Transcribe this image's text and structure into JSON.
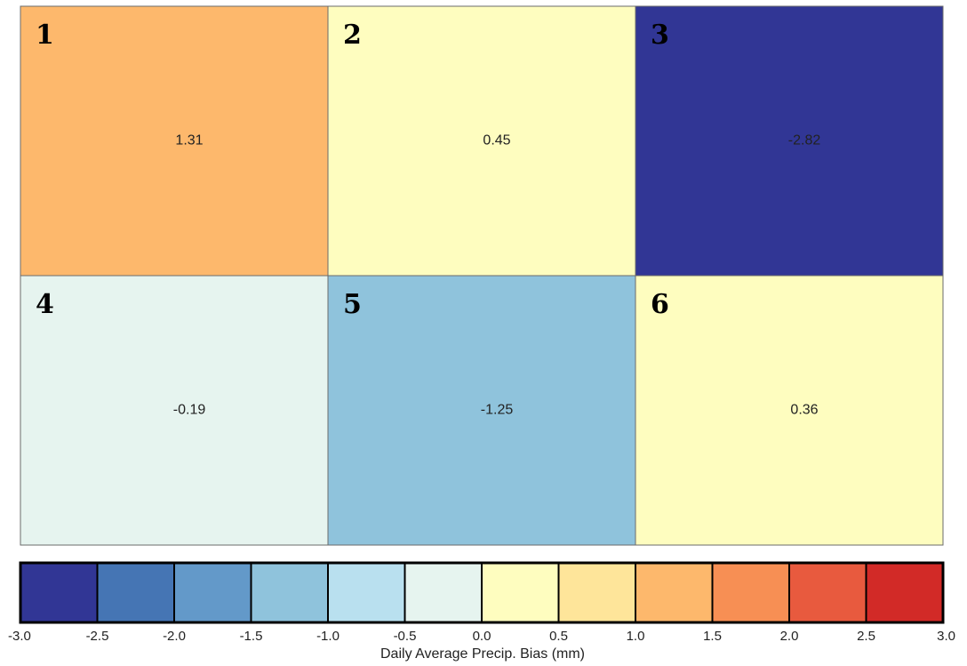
{
  "chart_data": {
    "type": "heatmap",
    "rows": 2,
    "cols": 3,
    "cells": [
      {
        "id": "1",
        "value": 1.31,
        "label": "1.31",
        "color": "#fdb86c"
      },
      {
        "id": "2",
        "value": 0.45,
        "label": "0.45",
        "color": "#fefdbf"
      },
      {
        "id": "3",
        "value": -2.82,
        "label": "-2.82",
        "color": "#313695"
      },
      {
        "id": "4",
        "value": -0.19,
        "label": "-0.19",
        "color": "#e6f4ef"
      },
      {
        "id": "5",
        "value": -1.25,
        "label": "-1.25",
        "color": "#8fc3dc"
      },
      {
        "id": "6",
        "value": 0.36,
        "label": "0.36",
        "color": "#fefdbf"
      }
    ],
    "colorbar": {
      "label": "Daily Average Precip. Bias (mm)",
      "ticks": [
        "-3.0",
        "-2.5",
        "-2.0",
        "-1.5",
        "-1.0",
        "-0.5",
        "0.0",
        "0.5",
        "1.0",
        "1.5",
        "2.0",
        "2.5",
        "3.0"
      ],
      "colors": [
        "#313695",
        "#4575b4",
        "#6399c9",
        "#8fc3dc",
        "#b9e0ef",
        "#e6f4ef",
        "#fefdbf",
        "#fee59a",
        "#fdb86c",
        "#f78f54",
        "#e85a3e",
        "#d22a27"
      ],
      "range": [
        -3.0,
        3.0
      ]
    }
  }
}
